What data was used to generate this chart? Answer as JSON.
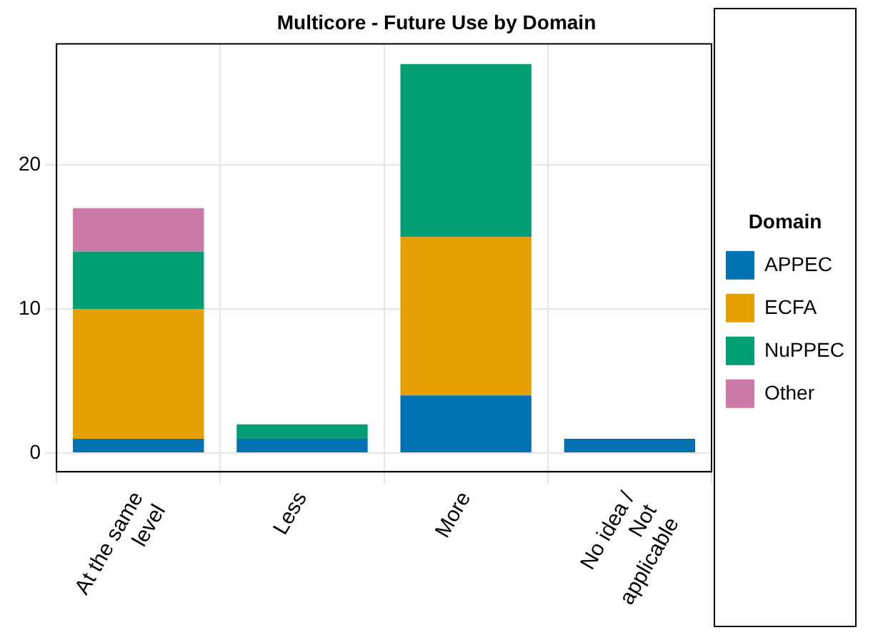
{
  "chart_data": {
    "type": "bar",
    "title": "Multicore - Future Use by Domain",
    "legend_title": "Domain",
    "categories": [
      "At the same level",
      "Less",
      "More",
      "No idea / Not applicable"
    ],
    "stacked": true,
    "series": [
      {
        "name": "APPEC",
        "color": "#0072b2",
        "values": [
          1,
          1,
          4,
          1
        ]
      },
      {
        "name": "ECFA",
        "color": "#e69f00",
        "values": [
          9,
          0,
          11,
          0
        ]
      },
      {
        "name": "NuPPEC",
        "color": "#009e73",
        "values": [
          4,
          1,
          12,
          0
        ]
      },
      {
        "name": "Other",
        "color": "#cc79a7",
        "values": [
          3,
          0,
          0,
          0
        ]
      }
    ],
    "ylim": [
      -1.3,
      28.4
    ],
    "yticks": [
      0,
      10,
      20
    ],
    "grid": true,
    "legend": "right"
  }
}
